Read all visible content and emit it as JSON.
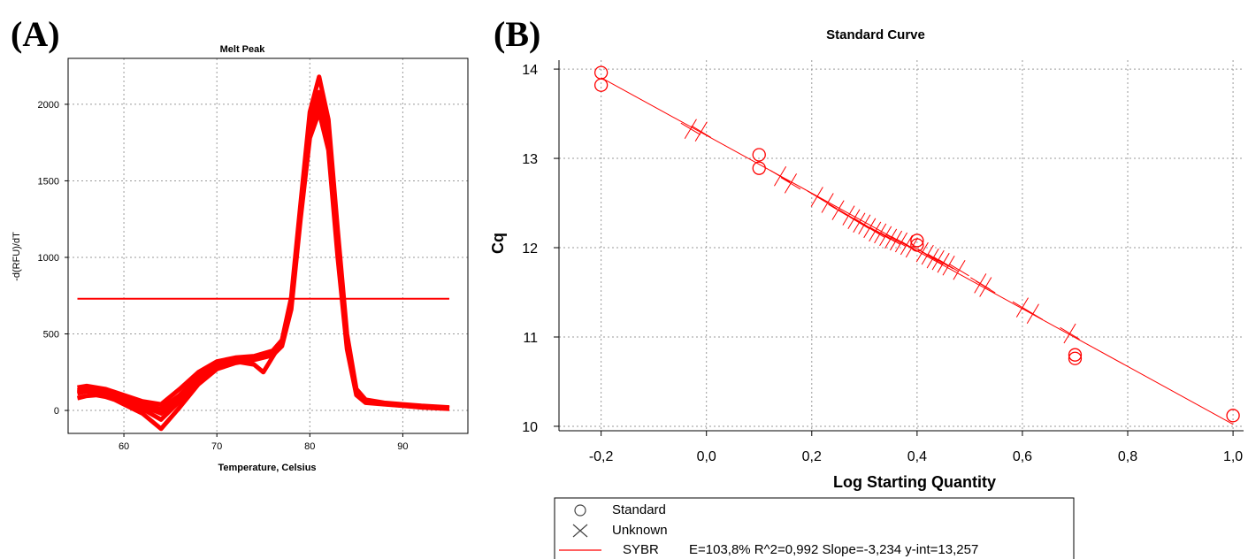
{
  "chart_data": [
    {
      "panel_label": "(A)",
      "type": "line",
      "title": "Melt Peak",
      "xlabel": "Temperature, Celsius",
      "ylabel": "-d(RFU)/dT",
      "xlim": [
        54,
        97
      ],
      "ylim": [
        -150,
        2300
      ],
      "xticks": [
        60,
        70,
        80,
        90
      ],
      "yticks": [
        0,
        500,
        1000,
        1500,
        2000
      ],
      "grid": true,
      "threshold": 730,
      "series_color": "#ff0000",
      "series": [
        {
          "x": [
            55,
            56,
            57,
            58,
            59,
            60,
            62,
            64,
            66,
            68,
            70,
            72,
            74,
            76,
            77,
            78,
            79,
            80,
            81,
            82,
            83,
            84,
            85,
            86,
            88,
            90,
            92,
            95
          ],
          "values": [
            130,
            140,
            135,
            120,
            100,
            80,
            40,
            10,
            100,
            220,
            300,
            330,
            345,
            380,
            440,
            700,
            1300,
            1850,
            2050,
            1800,
            1100,
            450,
            120,
            60,
            45,
            35,
            25,
            15
          ]
        },
        {
          "x": [
            55,
            56,
            57,
            58,
            59,
            60,
            62,
            64,
            66,
            68,
            70,
            72,
            74,
            76,
            77,
            78,
            79,
            80,
            81,
            82,
            83,
            84,
            85,
            86,
            88,
            90,
            92,
            95
          ],
          "values": [
            80,
            95,
            100,
            90,
            70,
            40,
            -20,
            -120,
            20,
            170,
            270,
            310,
            330,
            360,
            420,
            660,
            1250,
            1780,
            1950,
            1700,
            1000,
            400,
            100,
            50,
            40,
            30,
            20,
            10
          ]
        },
        {
          "x": [
            55,
            56,
            57,
            58,
            59,
            60,
            62,
            64,
            66,
            68,
            70,
            72,
            74,
            76,
            77,
            78,
            79,
            80,
            81,
            82,
            83,
            84,
            85,
            86,
            88,
            90,
            92,
            95
          ],
          "values": [
            150,
            160,
            150,
            140,
            120,
            100,
            60,
            40,
            140,
            250,
            320,
            345,
            355,
            390,
            460,
            740,
            1350,
            1950,
            2180,
            1900,
            1180,
            500,
            140,
            70,
            50,
            40,
            30,
            20
          ]
        },
        {
          "x": [
            55,
            56,
            57,
            58,
            59,
            60,
            62,
            64,
            66,
            68,
            70,
            72,
            74,
            76,
            77,
            78,
            79,
            80,
            81,
            82,
            83,
            84,
            85,
            86,
            88,
            90,
            92,
            95
          ],
          "values": [
            110,
            125,
            120,
            110,
            85,
            60,
            10,
            -60,
            60,
            200,
            290,
            320,
            335,
            370,
            430,
            690,
            1280,
            1820,
            2000,
            1750,
            1050,
            430,
            110,
            55,
            42,
            32,
            22,
            12
          ]
        },
        {
          "x": [
            55,
            56,
            57,
            58,
            59,
            60,
            62,
            64,
            66,
            68,
            70,
            72,
            74,
            75,
            76,
            77,
            78,
            79,
            80,
            81,
            82,
            83,
            84,
            85,
            86,
            88,
            90,
            92,
            95
          ],
          "values": [
            120,
            130,
            128,
            115,
            95,
            70,
            30,
            -20,
            80,
            210,
            300,
            320,
            300,
            250,
            350,
            450,
            720,
            1320,
            1880,
            2080,
            1820,
            1120,
            460,
            125,
            62,
            46,
            36,
            26,
            16
          ]
        }
      ]
    },
    {
      "panel_label": "(B)",
      "type": "scatter",
      "title": "Standard Curve",
      "xlabel": "Log Starting Quantity",
      "ylabel": "Cq",
      "xlim": [
        -0.28,
        1.02
      ],
      "ylim": [
        9.95,
        14.1
      ],
      "xticks": [
        -0.2,
        0.0,
        0.2,
        0.4,
        0.6,
        0.8,
        1.0
      ],
      "xtick_labels": [
        "-0,2",
        "0,0",
        "0,2",
        "0,4",
        "0,6",
        "0,8",
        "1,0"
      ],
      "yticks": [
        10,
        11,
        12,
        13,
        14
      ],
      "ytick_labels": [
        "10",
        "11",
        "12",
        "13",
        "14"
      ],
      "grid": true,
      "series_color": "#ff0000",
      "series": [
        {
          "name": "Standard",
          "marker": "circle",
          "x": [
            -0.2,
            -0.2,
            0.1,
            0.1,
            0.4,
            0.4,
            0.7,
            0.7,
            1.0
          ],
          "values": [
            13.96,
            13.82,
            13.04,
            12.89,
            12.08,
            12.03,
            10.8,
            10.76,
            10.12
          ]
        },
        {
          "name": "Unknown",
          "marker": "cross",
          "x": [
            -0.03,
            -0.01,
            0.14,
            0.16,
            0.21,
            0.23,
            0.25,
            0.27,
            0.28,
            0.29,
            0.3,
            0.31,
            0.32,
            0.33,
            0.34,
            0.35,
            0.36,
            0.37,
            0.38,
            0.39,
            0.41,
            0.42,
            0.43,
            0.44,
            0.45,
            0.46,
            0.48,
            0.52,
            0.53,
            0.6,
            0.62,
            0.69
          ],
          "values": [
            13.33,
            13.3,
            12.8,
            12.72,
            12.57,
            12.5,
            12.42,
            12.36,
            12.32,
            12.28,
            12.26,
            12.22,
            12.18,
            12.16,
            12.13,
            12.1,
            12.08,
            12.06,
            12.03,
            12.0,
            11.95,
            11.92,
            11.88,
            11.86,
            11.83,
            11.8,
            11.75,
            11.6,
            11.56,
            11.33,
            11.26,
            11.04
          ]
        }
      ],
      "fit_line": {
        "slope": -3.234,
        "intercept": 13.257,
        "x_range": [
          -0.2,
          1.0
        ]
      },
      "legend": {
        "standard_label": "Standard",
        "unknown_label": "Unknown",
        "fit_name": "SYBR",
        "fit_stats": "E=103,8% R^2=0,992 Slope=-3,234 y-int=13,257",
        "placement": "bottom-left"
      }
    }
  ]
}
